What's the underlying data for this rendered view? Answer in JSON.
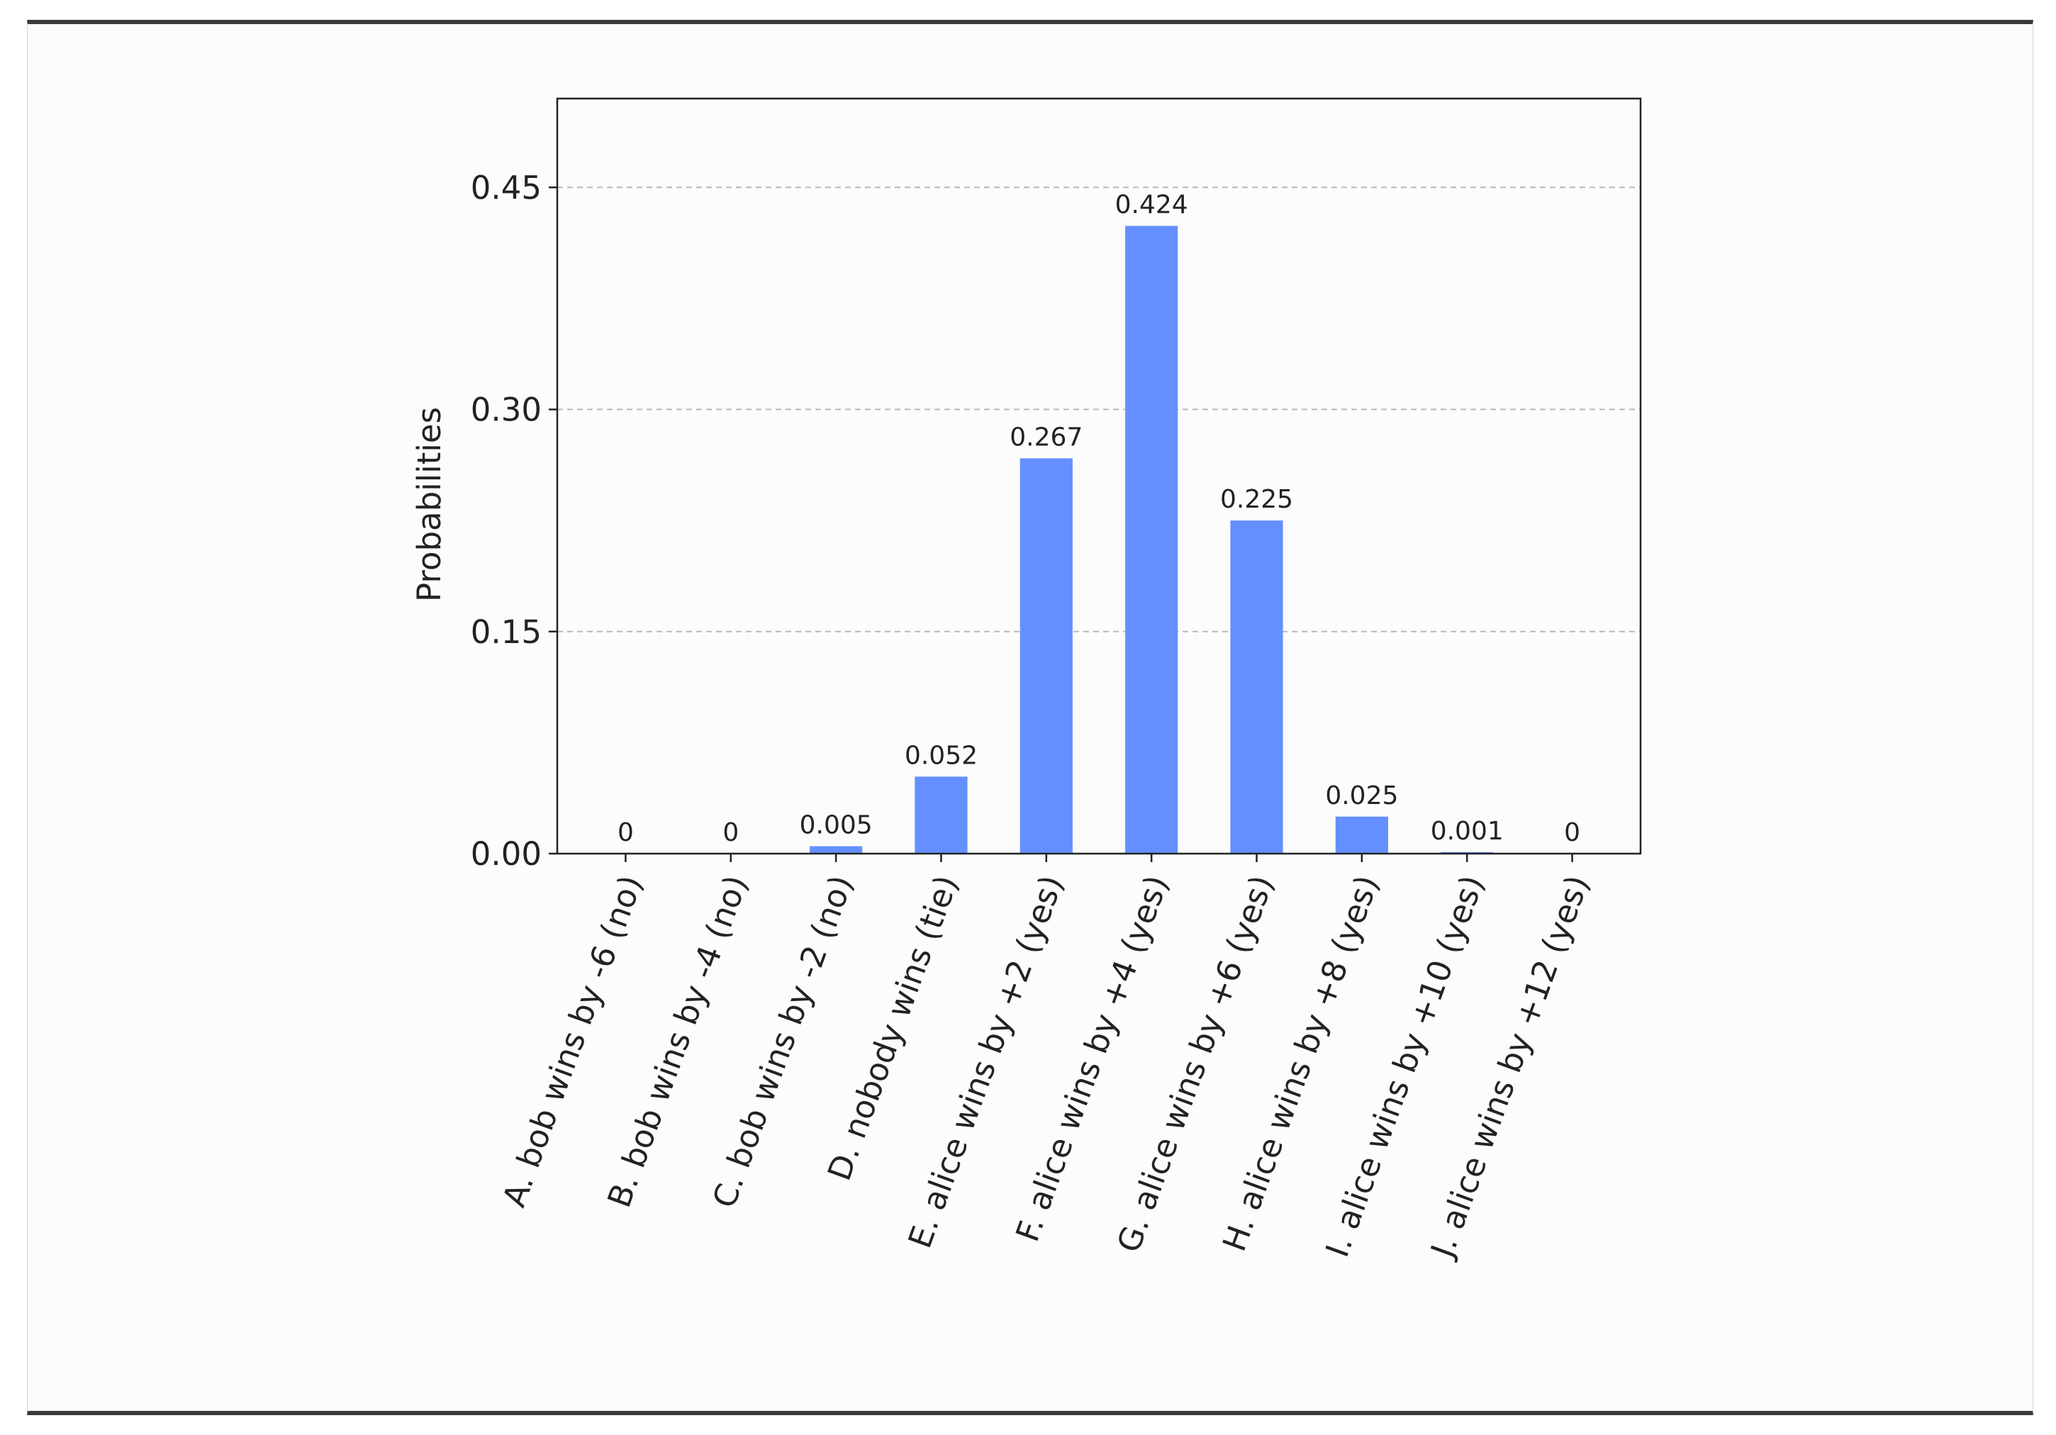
{
  "chart_data": {
    "type": "bar",
    "ylabel": "Probabilities",
    "ylim": [
      0,
      0.51
    ],
    "yticks": [
      0.0,
      0.15,
      0.3,
      0.45
    ],
    "ytick_labels": [
      "0.00",
      "0.15",
      "0.30",
      "0.45"
    ],
    "grid": "horizontal dashed",
    "categories": [
      "A. bob wins by -6 (no)",
      "B. bob wins by -4 (no)",
      "C. bob wins by -2 (no)",
      "D. nobody wins (tie)",
      "E. alice wins by +2 (yes)",
      "F. alice wins by +4 (yes)",
      "G. alice wins by +6 (yes)",
      "H. alice wins by +8 (yes)",
      "I. alice wins by +10 (yes)",
      "J. alice wins by +12 (yes)"
    ],
    "values": [
      0,
      0,
      0.005,
      0.052,
      0.267,
      0.424,
      0.225,
      0.025,
      0.001,
      0
    ],
    "value_labels": [
      "0",
      "0",
      "0.005",
      "0.052",
      "0.267",
      "0.424",
      "0.225",
      "0.025",
      "0.001",
      "0"
    ],
    "bar_color": "#648fff"
  }
}
